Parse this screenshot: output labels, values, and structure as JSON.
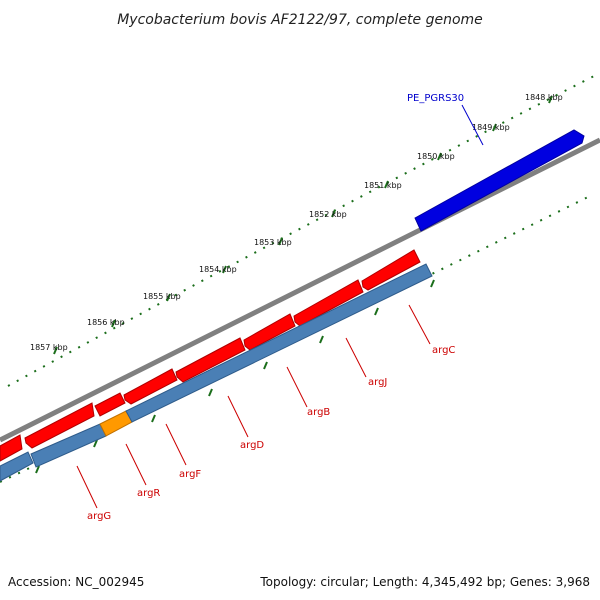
{
  "header": {
    "title": "Mycobacterium bovis AF2122/97, complete genome"
  },
  "footer": {
    "accession": "Accession: NC_002945",
    "summary": "Topology: circular; Length: 4,345,492 bp; Genes: 3,968"
  },
  "kbp_labels": [
    "1848 kbp",
    "1849 kbp",
    "1850 kbp",
    "1851 kbp",
    "1852 kbp",
    "1853 kbp",
    "1854 kbp",
    "1855 kbp",
    "1856 kbp",
    "1857 kbp"
  ],
  "genes_top": {
    "label": "PE_PGRS30"
  },
  "genes_bottom": [
    {
      "name": "argG"
    },
    {
      "name": "argR"
    },
    {
      "name": "argF"
    },
    {
      "name": "argD"
    },
    {
      "name": "argB"
    },
    {
      "name": "argJ"
    },
    {
      "name": "argC"
    }
  ],
  "colors": {
    "backbone": "#808080",
    "tick": "#1b6e1b",
    "forward_gene": "#0000e0",
    "reverse_gene": "#ff0000",
    "operon_bar": "#4a7fb5",
    "highlight_gene": "#ff9900",
    "gene_label": "#cc0000",
    "pe_label": "#0000cc"
  }
}
